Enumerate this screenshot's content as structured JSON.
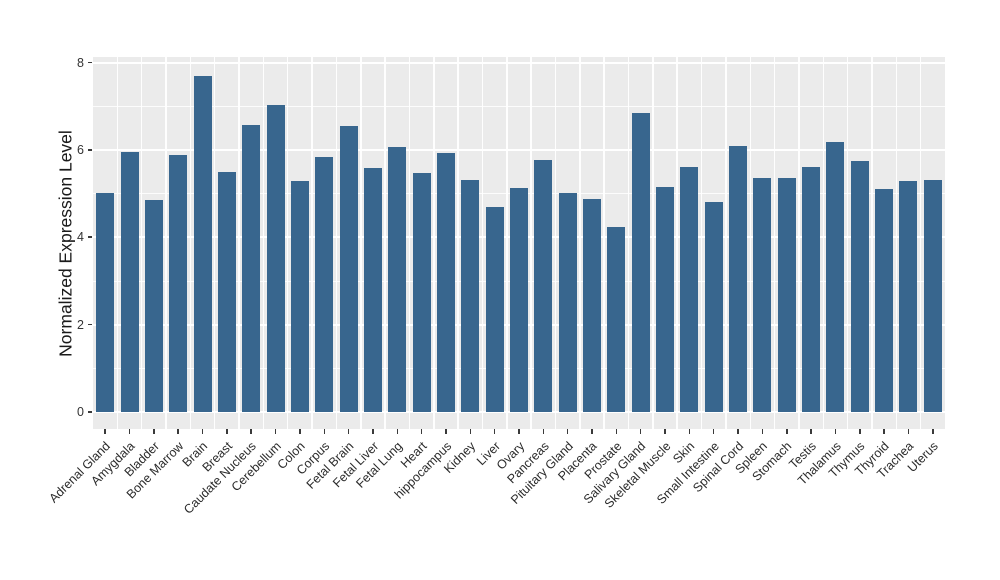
{
  "chart_data": {
    "type": "bar",
    "title": "",
    "xlabel": "",
    "ylabel": "Normalized Expression Level",
    "ylim": [
      -0.44,
      8.13
    ],
    "yticks": [
      0,
      2,
      4,
      6,
      8
    ],
    "ytick_labels": [
      "0",
      "2",
      "4",
      "6",
      "8"
    ],
    "yticks_minor": [
      1,
      3,
      5,
      7
    ],
    "grid": "major and minor, white on gray panel",
    "legend": false,
    "x_label_rotation_deg": 45,
    "categories": [
      "Adrenal Gland",
      "Amygdala",
      "Bladder",
      "Bone Marrow",
      "Brain",
      "Breast",
      "Caudate Nucleus",
      "Cerebellum",
      "Colon",
      "Corpus",
      "Fetal Brain",
      "Fetal Liver",
      "Fetal Lung",
      "Heart",
      "hippocampus",
      "Kidney",
      "Liver",
      "Ovary",
      "Pancreas",
      "Pituitary Gland",
      "Placenta",
      "Prostate",
      "Salivary Gland",
      "Skeletal Muscle",
      "Skin",
      "Small Intestine",
      "Spinal Cord",
      "Spleen",
      "Stomach",
      "Testis",
      "Thalamus",
      "Thymus",
      "Thyroid",
      "Trachea",
      "Uterus"
    ],
    "values": [
      5.02,
      5.96,
      4.86,
      5.89,
      7.7,
      5.49,
      6.58,
      7.03,
      5.3,
      5.85,
      6.56,
      5.59,
      6.06,
      5.47,
      5.93,
      5.31,
      4.69,
      5.13,
      5.77,
      5.02,
      4.88,
      4.23,
      6.85,
      5.15,
      5.62,
      4.81,
      6.1,
      5.36,
      5.36,
      5.62,
      6.18,
      5.76,
      5.12,
      5.29,
      5.31
    ],
    "colors": {
      "bar": "#38668e",
      "panel_background": "#ebebeb",
      "grid": "#ffffff",
      "tick_text": "#333333",
      "axis_title_text": "#1a1a1a",
      "page_background": "#ffffff"
    }
  }
}
